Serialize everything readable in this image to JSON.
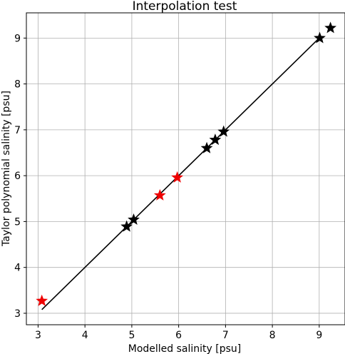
{
  "chart_data": {
    "type": "scatter",
    "title": "Interpolation test",
    "xlabel": "Modelled salinity [psu]",
    "ylabel": "Taylor polynomial salinity [psu]",
    "xlim": [
      2.75,
      9.55
    ],
    "ylim": [
      2.75,
      9.55
    ],
    "xticks": [
      3,
      4,
      5,
      6,
      7,
      8,
      9
    ],
    "yticks": [
      3,
      4,
      5,
      6,
      7,
      8,
      9
    ],
    "grid": true,
    "line": {
      "x": [
        3.08,
        9.02
      ],
      "y": [
        3.08,
        9.02
      ],
      "color": "#000000"
    },
    "series": [
      {
        "marker": "star",
        "color": "#000000",
        "points": [
          {
            "x": 4.89,
            "y": 4.89
          },
          {
            "x": 5.04,
            "y": 5.04
          },
          {
            "x": 6.6,
            "y": 6.6
          },
          {
            "x": 6.78,
            "y": 6.78
          },
          {
            "x": 6.96,
            "y": 6.96
          },
          {
            "x": 9.01,
            "y": 9.0
          },
          {
            "x": 9.24,
            "y": 9.22
          }
        ]
      },
      {
        "marker": "star",
        "color": "#ee0000",
        "points": [
          {
            "x": 3.08,
            "y": 3.27
          },
          {
            "x": 5.6,
            "y": 5.57
          },
          {
            "x": 5.97,
            "y": 5.96
          }
        ]
      }
    ]
  }
}
